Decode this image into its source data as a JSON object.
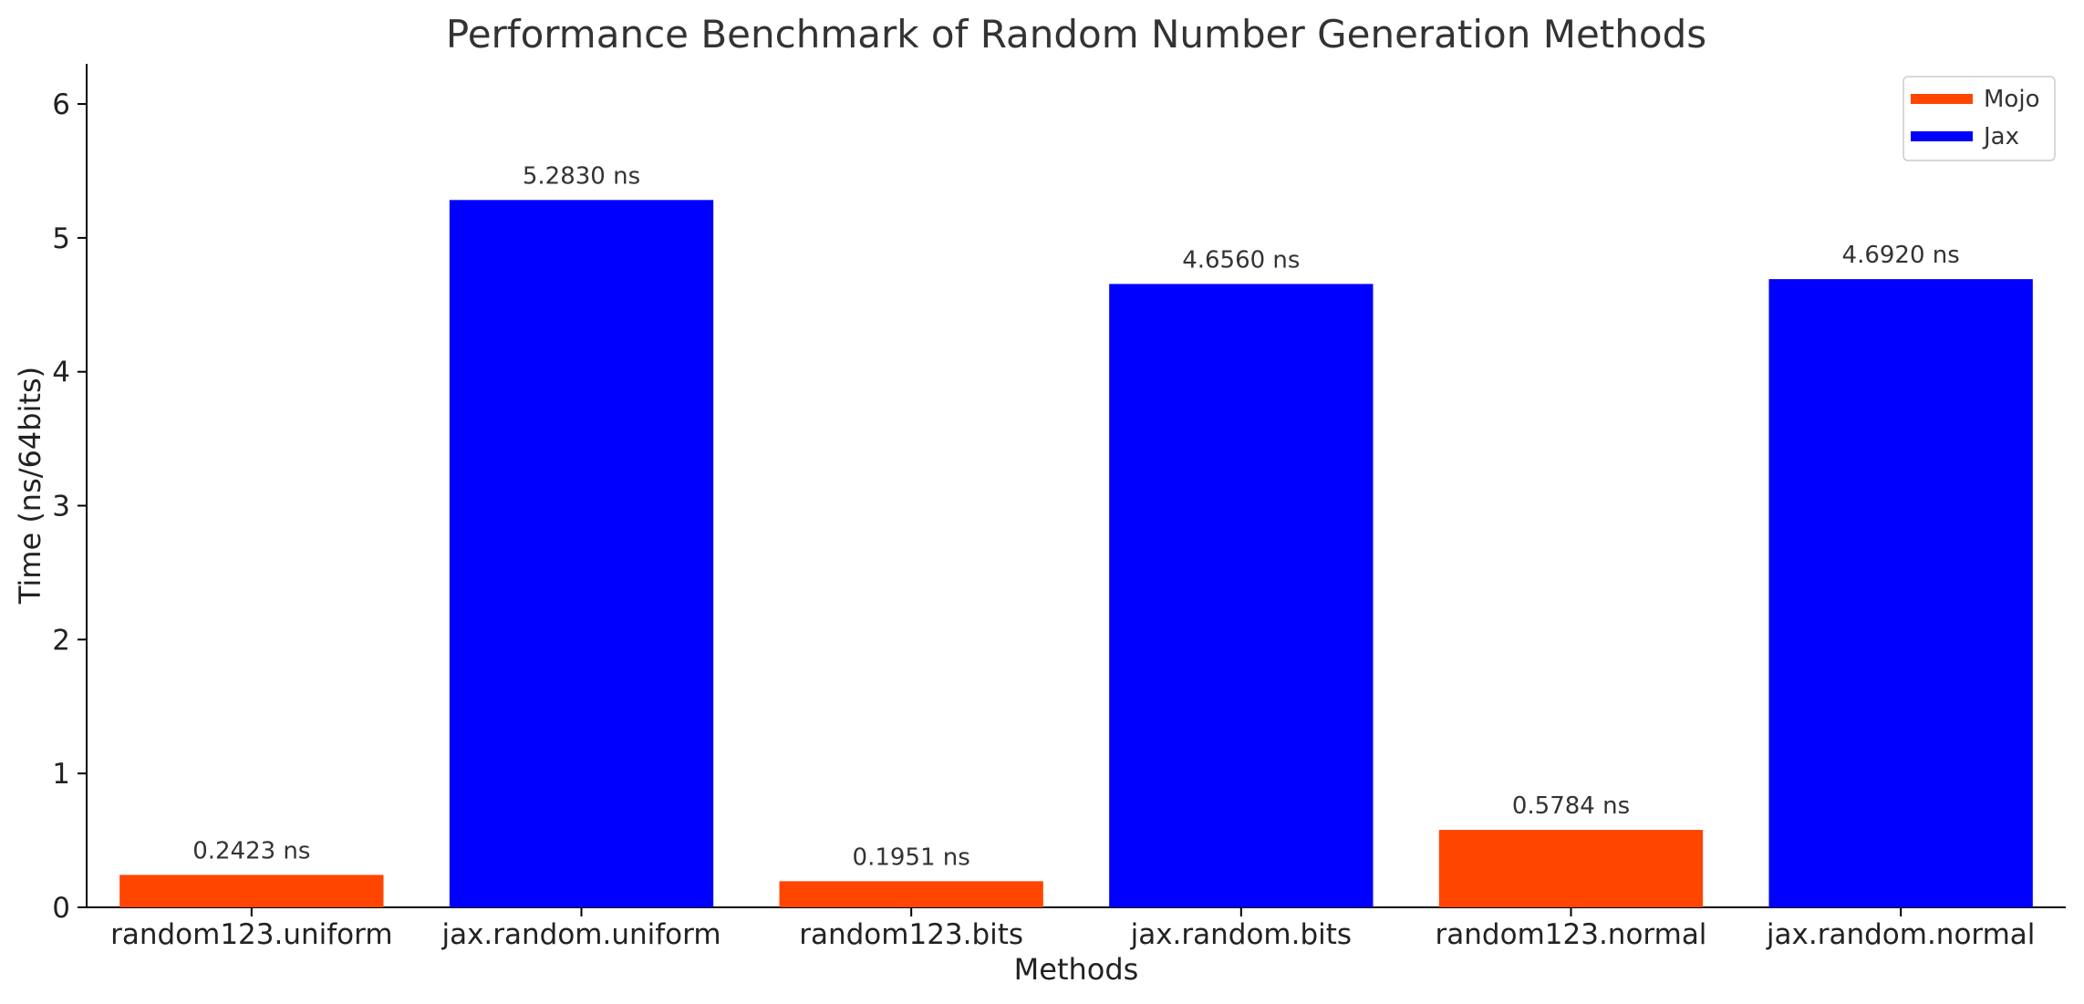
{
  "chart_data": {
    "type": "bar",
    "title": "Performance Benchmark of Random Number Generation Methods",
    "xlabel": "Methods",
    "ylabel": "Time (ns/64bits)",
    "categories": [
      "random123.uniform",
      "jax.random.uniform",
      "random123.bits",
      "jax.random.bits",
      "random123.normal",
      "jax.random.normal"
    ],
    "values": [
      0.2423,
      5.283,
      0.1951,
      4.656,
      0.5784,
      4.692
    ],
    "value_labels": [
      "0.2423 ns",
      "5.2830 ns",
      "0.1951 ns",
      "4.6560 ns",
      "0.5784 ns",
      "4.6920 ns"
    ],
    "bar_series": [
      "Mojo",
      "Jax",
      "Mojo",
      "Jax",
      "Mojo",
      "Jax"
    ],
    "series": [
      {
        "name": "Mojo",
        "color": "#ff4500"
      },
      {
        "name": "Jax",
        "color": "#0000ff"
      }
    ],
    "ylim": [
      0,
      6.3
    ],
    "yticks": [
      0,
      1,
      2,
      3,
      4,
      5,
      6
    ],
    "ytick_labels": [
      "0",
      "1",
      "2",
      "3",
      "4",
      "5",
      "6"
    ],
    "grid": false,
    "legend_position": "top-right"
  }
}
